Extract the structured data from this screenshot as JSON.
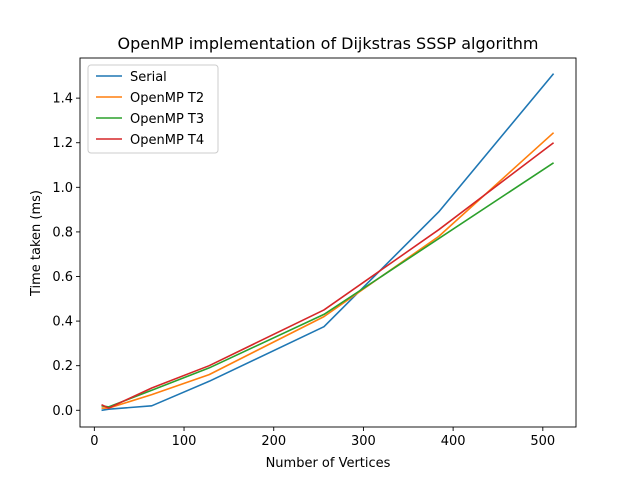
{
  "chart_data": {
    "type": "line",
    "title": "OpenMP implementation of Dijkstras SSSP algorithm",
    "xlabel": "Number of Vertices",
    "ylabel": "Time taken (ms)",
    "xlim": [
      -16,
      537
    ],
    "ylim": [
      -0.075,
      1.58
    ],
    "xticks": [
      0,
      100,
      200,
      300,
      400,
      500
    ],
    "yticks": [
      0.0,
      0.2,
      0.4,
      0.6,
      0.8,
      1.0,
      1.2,
      1.4
    ],
    "ytick_labels": [
      "0.0",
      "0.2",
      "0.4",
      "0.6",
      "0.8",
      "1.0",
      "1.2",
      "1.4"
    ],
    "grid": false,
    "legend_position": "upper-left",
    "x": [
      8,
      16,
      64,
      128,
      256,
      384,
      512
    ],
    "series": [
      {
        "name": "Serial",
        "color": "#1f77b4",
        "values": [
          0.0,
          0.005,
          0.02,
          0.13,
          0.375,
          0.89,
          1.51
        ]
      },
      {
        "name": "OpenMP T2",
        "color": "#ff7f0e",
        "values": [
          0.01,
          0.01,
          0.07,
          0.16,
          0.42,
          0.78,
          1.245
        ]
      },
      {
        "name": "OpenMP T3",
        "color": "#2ca02c",
        "values": [
          0.02,
          0.015,
          0.09,
          0.19,
          0.43,
          0.77,
          1.11
        ]
      },
      {
        "name": "OpenMP T4",
        "color": "#d62728",
        "values": [
          0.025,
          0.01,
          0.1,
          0.2,
          0.45,
          0.81,
          1.2
        ]
      }
    ]
  }
}
